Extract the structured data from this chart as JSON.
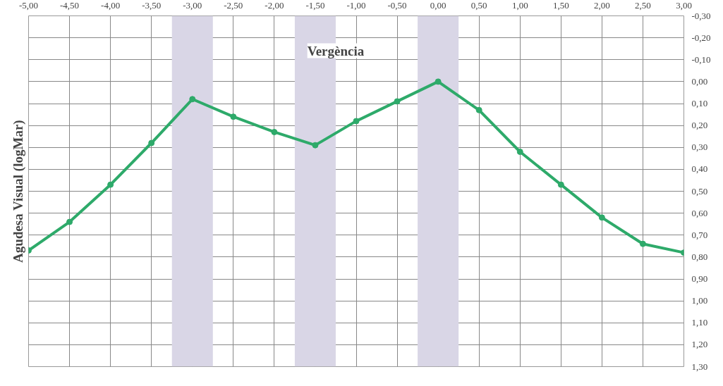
{
  "chart_data": {
    "type": "line",
    "title": "Vergència",
    "ylabel": "Agudesa Visual (logMar)",
    "x": [
      -5.0,
      -4.5,
      -4.0,
      -3.5,
      -3.0,
      -2.5,
      -2.0,
      -1.5,
      -1.0,
      -0.5,
      0.0,
      0.5,
      1.0,
      1.5,
      2.0,
      2.5,
      3.0
    ],
    "series": [
      {
        "color": "#2eaa6a",
        "values": [
          0.77,
          0.64,
          0.47,
          0.28,
          0.08,
          0.16,
          0.23,
          0.29,
          0.18,
          0.09,
          0.0,
          0.13,
          0.32,
          0.47,
          0.62,
          0.74,
          0.78
        ]
      }
    ],
    "marker": "circle",
    "grid": true,
    "xlim": [
      -5.0,
      3.0
    ],
    "xticks": [
      {
        "value": -5.0,
        "label": "-5,00"
      },
      {
        "value": -4.5,
        "label": "-4,50"
      },
      {
        "value": -4.0,
        "label": "-4,00"
      },
      {
        "value": -3.5,
        "label": "-3,50"
      },
      {
        "value": -3.0,
        "label": "-3,00"
      },
      {
        "value": -2.5,
        "label": "-2,50"
      },
      {
        "value": -2.0,
        "label": "-2,00"
      },
      {
        "value": -1.5,
        "label": "-1,50"
      },
      {
        "value": -1.0,
        "label": "-1,00"
      },
      {
        "value": -0.5,
        "label": "-0,50"
      },
      {
        "value": 0.0,
        "label": "0,00"
      },
      {
        "value": 0.5,
        "label": "0,50"
      },
      {
        "value": 1.0,
        "label": "1,00"
      },
      {
        "value": 1.5,
        "label": "1,50"
      },
      {
        "value": 2.0,
        "label": "2,00"
      },
      {
        "value": 2.5,
        "label": "2,50"
      },
      {
        "value": 3.0,
        "label": "3,00"
      }
    ],
    "ylim": [
      1.3,
      -0.3
    ],
    "yticks": [
      {
        "value": -0.3,
        "label": "-0,30"
      },
      {
        "value": -0.2,
        "label": "-0,20"
      },
      {
        "value": -0.1,
        "label": "-0,10"
      },
      {
        "value": 0.0,
        "label": "0,00"
      },
      {
        "value": 0.1,
        "label": "0,10"
      },
      {
        "value": 0.2,
        "label": "0,20"
      },
      {
        "value": 0.3,
        "label": "0,30"
      },
      {
        "value": 0.4,
        "label": "0,40"
      },
      {
        "value": 0.5,
        "label": "0,50"
      },
      {
        "value": 0.6,
        "label": "0,60"
      },
      {
        "value": 0.7,
        "label": "0,70"
      },
      {
        "value": 0.8,
        "label": "0,80"
      },
      {
        "value": 0.9,
        "label": "0,90"
      },
      {
        "value": 1.0,
        "label": "1,00"
      },
      {
        "value": 1.1,
        "label": "1,10"
      },
      {
        "value": 1.2,
        "label": "1,20"
      },
      {
        "value": 1.3,
        "label": "1,30"
      }
    ],
    "bands": [
      {
        "axis": "x",
        "from": -3.25,
        "to": -2.75,
        "color": "#d9d6e6"
      },
      {
        "axis": "x",
        "from": -1.75,
        "to": -1.25,
        "color": "#d9d6e6"
      },
      {
        "axis": "x",
        "from": -0.25,
        "to": 0.25,
        "color": "#d9d6e6"
      }
    ]
  }
}
